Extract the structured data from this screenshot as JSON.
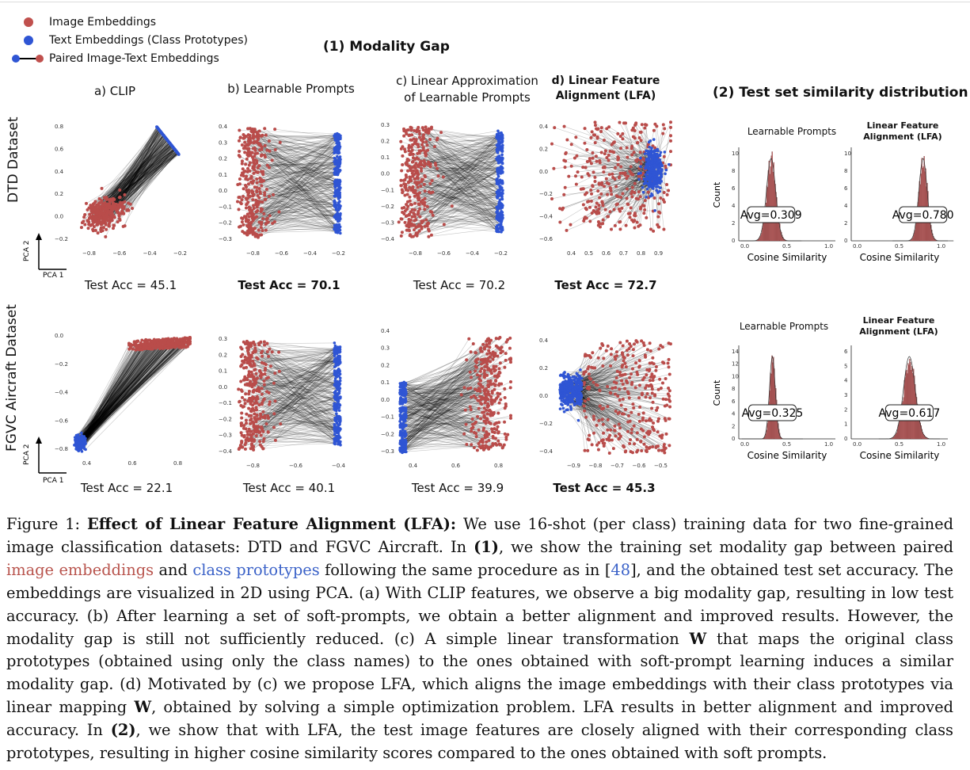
{
  "legend": {
    "image_embeddings": "Image Embeddings",
    "text_embeddings": "Text Embeddings (Class Prototypes)",
    "paired": "Paired Image-Text Embeddings"
  },
  "colors": {
    "image": "#b94c4a",
    "text": "#2f55d4",
    "line": "#000000",
    "bar": "#c96a6a"
  },
  "section1_title": "(1) Modality Gap",
  "section2_title": "(2) Test set similarity distribution",
  "columns": {
    "a": "a) CLIP",
    "b": "b) Learnable Prompts",
    "c1": "c) Linear Approximation",
    "c2": "of Learnable Prompts",
    "d1": "d) Linear Feature",
    "d2": "Alignment (LFA)"
  },
  "rows": {
    "dtd": "DTD Dataset",
    "fgvc": "FGVC Aircraft Dataset"
  },
  "axes": {
    "pca1": "PCA 1",
    "pca2": "PCA 2"
  },
  "accuracy": {
    "dtd": [
      "Test Acc = 45.1",
      "Test Acc = 70.1",
      "Test Acc = 70.2",
      "Test Acc = 72.7"
    ],
    "fgvc": [
      "Test Acc = 22.1",
      "Test Acc = 40.1",
      "Test Acc = 39.9",
      "Test Acc = 45.3"
    ]
  },
  "scatter_ticks": {
    "dtd_a": {
      "y": [
        "0.8",
        "0.6",
        "0.4",
        "0.2",
        "0.0",
        "−0.2"
      ],
      "x": [
        "−0.8",
        "−0.6",
        "−0.4",
        "−0.2"
      ]
    },
    "dtd_b": {
      "y": [
        "0.4",
        "0.3",
        "0.2",
        "0.1",
        "0.0",
        "−0.1",
        "−0.2",
        "−0.3"
      ],
      "x": [
        "−0.8",
        "−0.6",
        "−0.4",
        "−0.2"
      ]
    },
    "dtd_c": {
      "y": [
        "0.3",
        "0.2",
        "0.1",
        "0.0",
        "−0.1",
        "−0.2",
        "−0.3",
        "−0.4"
      ],
      "x": [
        "−0.8",
        "−0.6",
        "−0.4",
        "−0.2"
      ]
    },
    "dtd_d": {
      "y": [
        "0.4",
        "0.2",
        "0.0",
        "−0.2",
        "−0.4",
        "−0.6"
      ],
      "x": [
        "0.4",
        "0.5",
        "0.6",
        "0.7",
        "0.8",
        "0.9"
      ]
    },
    "fgvc_a": {
      "y": [
        "0.0",
        "−0.2",
        "−0.4",
        "−0.6",
        "−0.8"
      ],
      "x": [
        "0.4",
        "0.6",
        "0.8"
      ]
    },
    "fgvc_b": {
      "y": [
        "0.3",
        "0.2",
        "0.1",
        "0.0",
        "−0.1",
        "−0.2",
        "−0.3",
        "−0.4"
      ],
      "x": [
        "−0.8",
        "−0.6",
        "−0.4"
      ]
    },
    "fgvc_c": {
      "y": [
        "0.4",
        "0.3",
        "0.2",
        "0.1",
        "0.0",
        "−0.1",
        "−0.2",
        "−0.3"
      ],
      "x": [
        "0.4",
        "0.6",
        "0.8"
      ]
    },
    "fgvc_d": {
      "y": [
        "0.4",
        "0.2",
        "0.0",
        "−0.2",
        "−0.4"
      ],
      "x": [
        "−0.9",
        "−0.8",
        "−0.7",
        "−0.6",
        "−0.5"
      ]
    }
  },
  "histograms": {
    "titles": {
      "lp": "Learnable Prompts",
      "lfa1": "Linear Feature",
      "lfa2": "Alignment (LFA)"
    },
    "count_label": "Count",
    "xlabel": "Cosine Similarity",
    "x_ticks": [
      "0.0",
      "0.5",
      "1.0"
    ],
    "dtd_lp": {
      "avg": "Avg=0.309",
      "mean": 0.309,
      "y_ticks": [
        "10",
        "8",
        "6",
        "4",
        "2",
        "0"
      ],
      "ymax": 10
    },
    "dtd_lfa": {
      "avg": "Avg=0.780",
      "mean": 0.78,
      "y_ticks": [
        "10",
        "8",
        "6",
        "4",
        "2",
        "0"
      ],
      "ymax": 10
    },
    "fgvc_lp": {
      "avg": "Avg=0.325",
      "mean": 0.325,
      "y_ticks": [
        "14",
        "12",
        "10",
        "8",
        "6",
        "4",
        "2",
        "0"
      ],
      "ymax": 14
    },
    "fgvc_lfa": {
      "avg": "Avg=0.617",
      "mean": 0.617,
      "y_ticks": [
        "6",
        "5",
        "4",
        "3",
        "2",
        "1",
        "0"
      ],
      "ymax": 6
    }
  },
  "caption": {
    "label": "Figure 1:",
    "bold_title": "Effect of Linear Feature Alignment (LFA):",
    "t1": " We use 16-shot (per class) training data for two fine-grained image classification datasets: DTD and FGVC Aircraft.  In ",
    "n1": "(1)",
    "t2": ", we show the training set modality gap between paired ",
    "image_embeddings": "image embeddings",
    "t3": " and ",
    "class_prototypes": "class prototypes",
    "t4": " following the same procedure as in [",
    "ref": "48",
    "t5": "], and the obtained test set accuracy. The embeddings are visualized in 2D using PCA. (a) With CLIP features, we observe a big modality gap, resulting in low test accuracy. (b) After learning a set of soft-prompts, we obtain a better alignment and improved results. However, the modality gap is still not sufficiently reduced. (c) A simple linear transformation ",
    "W1": "W",
    "t6": " that maps the original class prototypes (obtained using only the class names) to the ones obtained with soft-prompt learning induces a similar modality gap. (d) Motivated by (c) we propose LFA, which aligns the image embeddings with their class prototypes via linear mapping ",
    "W2": "W",
    "t7": ", obtained by solving a simple optimization problem. LFA results in better alignment and improved accuracy. In ",
    "n2": "(2)",
    "t8": ", we show that with LFA, the test image features are closely aligned with their corresponding class prototypes, resulting in higher cosine similarity scores compared to the ones obtained with soft prompts."
  }
}
